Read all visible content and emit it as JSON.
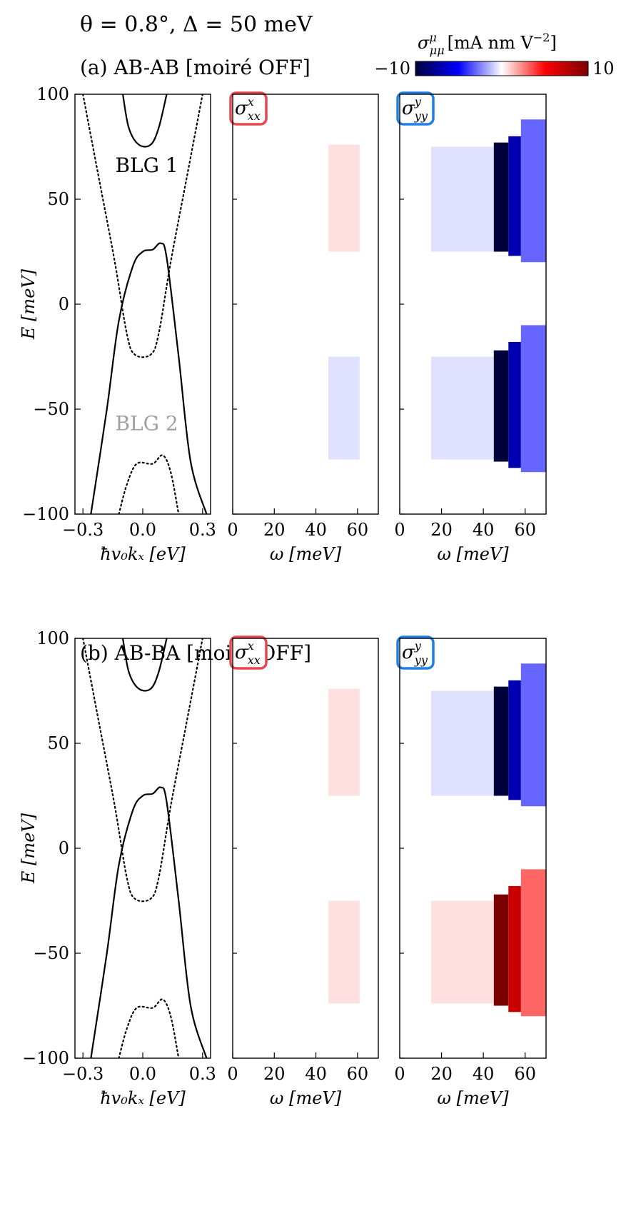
{
  "figure": {
    "header": "θ = 0.8°,  Δ = 50 meV",
    "colorbar": {
      "label": "σ",
      "label_sup": "μ",
      "label_sub": "μμ",
      "label_units": "[mA nm V",
      "label_units_sup": "−2",
      "label_units_close": "]",
      "min_label": "−10",
      "max_label": "10",
      "min": -10,
      "max": 10,
      "colors": [
        "#00003a",
        "#0000ff",
        "#ffffff",
        "#ff0000",
        "#7a0000"
      ]
    },
    "panels": [
      {
        "title": "(a) AB-AB [moiré OFF]",
        "band_labels": [
          {
            "text": "BLG 1",
            "color": "#000000"
          },
          {
            "text": "BLG 2",
            "color": "#a0a0a0"
          }
        ],
        "sxx_label": {
          "sym": "σ",
          "sup": "x",
          "sub": "xx",
          "color": "#e8474f"
        },
        "syy_label": {
          "sym": "σ",
          "sup": "y",
          "sub": "yy",
          "color": "#1e7fe8"
        }
      },
      {
        "title": "(b) AB-BA [moiré OFF]",
        "sxx_label": {
          "sym": "σ",
          "sup": "x",
          "sub": "xx",
          "color": "#e8474f"
        },
        "syy_label": {
          "sym": "σ",
          "sup": "y",
          "sub": "yy",
          "color": "#1e7fe8"
        }
      }
    ],
    "axes": {
      "band_xlabel": "ħv₀kₓ [eV]",
      "omega_xlabel": "ω [meV]",
      "ylabel": "E [meV]",
      "band_xticks": [
        "−0.3",
        "0.0",
        "0.3"
      ],
      "omega_xticks_sxx": [
        "0",
        "20",
        "40",
        "60"
      ],
      "omega_xticks_syy": [
        "0",
        "20",
        "40",
        "60"
      ],
      "yticks": [
        "100",
        "50",
        "0",
        "−50",
        "−100"
      ]
    }
  },
  "chart_data": [
    {
      "type": "line",
      "panel": "a-bands",
      "x_range_eV": [
        -0.34,
        0.34
      ],
      "y_range_meV": [
        -100,
        100
      ],
      "series": [
        {
          "style": "solid",
          "points": [
            [
              -0.26,
              -100
            ],
            [
              -0.18,
              -50
            ],
            [
              -0.12,
              -8
            ],
            [
              -0.05,
              18
            ],
            [
              0.0,
              25
            ],
            [
              0.05,
              26
            ],
            [
              0.09,
              29
            ],
            [
              0.12,
              22
            ],
            [
              0.18,
              -25
            ],
            [
              0.24,
              -75
            ],
            [
              0.32,
              -100
            ]
          ]
        },
        {
          "style": "solid",
          "points": [
            [
              -0.1,
              100
            ],
            [
              -0.07,
              84
            ],
            [
              -0.02,
              76
            ],
            [
              0.04,
              76
            ],
            [
              0.08,
              84
            ],
            [
              0.12,
              100
            ]
          ]
        },
        {
          "style": "dotted",
          "points": [
            [
              -0.3,
              100
            ],
            [
              -0.22,
              60
            ],
            [
              -0.14,
              20
            ],
            [
              -0.08,
              -14
            ],
            [
              -0.04,
              -24
            ],
            [
              0.04,
              -24
            ],
            [
              0.08,
              -14
            ],
            [
              0.14,
              20
            ],
            [
              0.22,
              60
            ],
            [
              0.3,
              100
            ]
          ]
        },
        {
          "style": "dotted",
          "points": [
            [
              -0.12,
              -100
            ],
            [
              -0.08,
              -86
            ],
            [
              -0.03,
              -76
            ],
            [
              0.05,
              -76
            ],
            [
              0.1,
              -72
            ],
            [
              0.14,
              -80
            ],
            [
              0.18,
              -100
            ]
          ]
        }
      ]
    },
    {
      "type": "line",
      "panel": "b-bands",
      "x_range_eV": [
        -0.34,
        0.34
      ],
      "y_range_meV": [
        -100,
        100
      ],
      "series": [
        {
          "style": "solid",
          "points": [
            [
              -0.26,
              -100
            ],
            [
              -0.18,
              -50
            ],
            [
              -0.12,
              -8
            ],
            [
              -0.05,
              18
            ],
            [
              0.0,
              25
            ],
            [
              0.05,
              26
            ],
            [
              0.09,
              29
            ],
            [
              0.12,
              22
            ],
            [
              0.18,
              -25
            ],
            [
              0.24,
              -75
            ],
            [
              0.32,
              -100
            ]
          ]
        },
        {
          "style": "solid",
          "points": [
            [
              -0.1,
              100
            ],
            [
              -0.07,
              84
            ],
            [
              -0.02,
              76
            ],
            [
              0.04,
              76
            ],
            [
              0.08,
              84
            ],
            [
              0.12,
              100
            ]
          ]
        },
        {
          "style": "dotted",
          "points": [
            [
              -0.3,
              100
            ],
            [
              -0.22,
              60
            ],
            [
              -0.14,
              20
            ],
            [
              -0.08,
              -14
            ],
            [
              -0.04,
              -24
            ],
            [
              0.04,
              -24
            ],
            [
              0.08,
              -14
            ],
            [
              0.14,
              20
            ],
            [
              0.22,
              60
            ],
            [
              0.3,
              100
            ]
          ]
        },
        {
          "style": "dotted",
          "points": [
            [
              -0.12,
              -100
            ],
            [
              -0.08,
              -86
            ],
            [
              -0.03,
              -76
            ],
            [
              0.05,
              -76
            ],
            [
              0.1,
              -72
            ],
            [
              0.14,
              -80
            ],
            [
              0.18,
              -100
            ]
          ]
        }
      ]
    },
    {
      "type": "heatmap",
      "panel": "a-sxx",
      "x_range_meV": [
        0,
        70
      ],
      "y_range_meV": [
        -100,
        100
      ],
      "regions": [
        {
          "w": [
            46,
            61
          ],
          "e": [
            25,
            76
          ],
          "value": 0.6
        },
        {
          "w": [
            46,
            61
          ],
          "e": [
            -74,
            -25
          ],
          "value": -0.6
        }
      ]
    },
    {
      "type": "heatmap",
      "panel": "a-syy",
      "x_range_meV": [
        0,
        70
      ],
      "y_range_meV": [
        -100,
        100
      ],
      "regions": [
        {
          "w": [
            15,
            45
          ],
          "e": [
            25,
            75
          ],
          "value": -0.6
        },
        {
          "w": [
            45,
            52
          ],
          "e": [
            25,
            77
          ],
          "value": -10
        },
        {
          "w": [
            52,
            58
          ],
          "e": [
            23,
            80
          ],
          "value": -7
        },
        {
          "w": [
            58,
            70
          ],
          "e": [
            20,
            88
          ],
          "value": -3
        },
        {
          "w": [
            15,
            45
          ],
          "e": [
            -74,
            -25
          ],
          "value": -0.6
        },
        {
          "w": [
            45,
            52
          ],
          "e": [
            -75,
            -22
          ],
          "value": -10
        },
        {
          "w": [
            52,
            58
          ],
          "e": [
            -78,
            -18
          ],
          "value": -7
        },
        {
          "w": [
            58,
            70
          ],
          "e": [
            -80,
            -10
          ],
          "value": -3
        }
      ]
    },
    {
      "type": "heatmap",
      "panel": "b-sxx",
      "x_range_meV": [
        0,
        70
      ],
      "y_range_meV": [
        -100,
        100
      ],
      "regions": [
        {
          "w": [
            46,
            61
          ],
          "e": [
            25,
            76
          ],
          "value": 0.6
        },
        {
          "w": [
            46,
            61
          ],
          "e": [
            -74,
            -25
          ],
          "value": 0.6
        }
      ]
    },
    {
      "type": "heatmap",
      "panel": "b-syy",
      "x_range_meV": [
        0,
        70
      ],
      "y_range_meV": [
        -100,
        100
      ],
      "regions": [
        {
          "w": [
            15,
            45
          ],
          "e": [
            25,
            75
          ],
          "value": -0.6
        },
        {
          "w": [
            45,
            52
          ],
          "e": [
            25,
            77
          ],
          "value": -10
        },
        {
          "w": [
            52,
            58
          ],
          "e": [
            23,
            80
          ],
          "value": -7
        },
        {
          "w": [
            58,
            70
          ],
          "e": [
            20,
            88
          ],
          "value": -3
        },
        {
          "w": [
            15,
            45
          ],
          "e": [
            -74,
            -25
          ],
          "value": 0.6
        },
        {
          "w": [
            45,
            52
          ],
          "e": [
            -75,
            -22
          ],
          "value": 10
        },
        {
          "w": [
            52,
            58
          ],
          "e": [
            -78,
            -18
          ],
          "value": 7
        },
        {
          "w": [
            58,
            70
          ],
          "e": [
            -80,
            -10
          ],
          "value": 3
        }
      ]
    }
  ]
}
